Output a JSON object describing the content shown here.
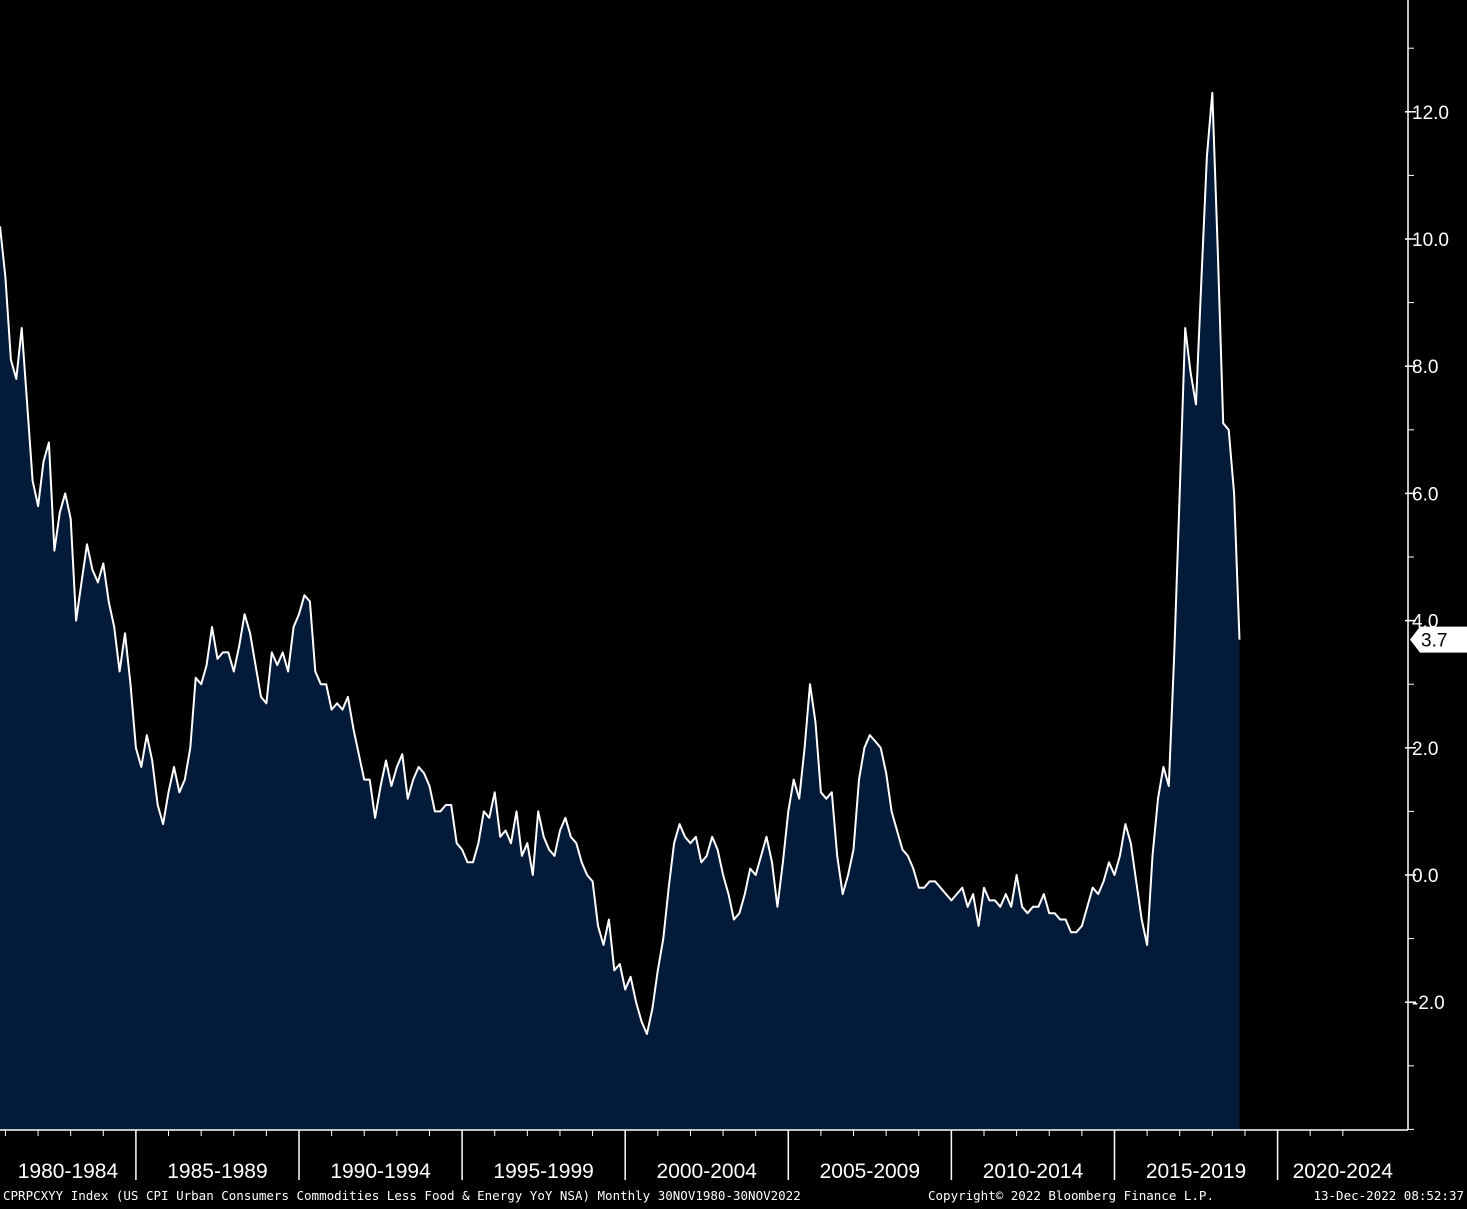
{
  "footer": {
    "left": "CPRPCXYY Index (US CPI Urban Consumers Commodities Less Food & Energy YoY NSA)  Monthly 30NOV1980-30NOV2022",
    "copyright": "Copyright© 2022 Bloomberg Finance L.P.",
    "timestamp": "13-Dec-2022 08:52:37"
  },
  "colors": {
    "background": "#000000",
    "area_fill": "#031a38",
    "line": "#ffffff",
    "axis": "#ffffff"
  },
  "chart_data": {
    "type": "area",
    "title": "",
    "xlabel": "",
    "ylabel": "",
    "x_range": [
      "1980-11",
      "2022-11"
    ],
    "ylim": [
      -4.0,
      14.0
    ],
    "y_ticks": [
      -2.0,
      0.0,
      2.0,
      4.0,
      6.0,
      8.0,
      10.0,
      12.0
    ],
    "y_tick_labels": [
      "-2.0",
      "0.0",
      "2.0",
      "4.0",
      "6.0",
      "8.0",
      "10.0",
      "12.0"
    ],
    "x_tick_labels": [
      "1980-1984",
      "1985-1989",
      "1990-1994",
      "1995-1999",
      "2000-2004",
      "2005-2009",
      "2010-2014",
      "2015-2019",
      "2020-2024"
    ],
    "last_value_label": "3.7",
    "grid": false,
    "series": [
      {
        "values": [
          [
            "1980-11",
            10.2
          ],
          [
            "1981-01",
            9.4
          ],
          [
            "1981-03",
            8.1
          ],
          [
            "1981-05",
            7.8
          ],
          [
            "1981-07",
            8.6
          ],
          [
            "1981-09",
            7.4
          ],
          [
            "1981-11",
            6.2
          ],
          [
            "1982-01",
            5.8
          ],
          [
            "1982-03",
            6.5
          ],
          [
            "1982-05",
            6.8
          ],
          [
            "1982-07",
            5.1
          ],
          [
            "1982-09",
            5.7
          ],
          [
            "1982-11",
            6.0
          ],
          [
            "1983-01",
            5.6
          ],
          [
            "1983-03",
            4.0
          ],
          [
            "1983-05",
            4.6
          ],
          [
            "1983-07",
            5.2
          ],
          [
            "1983-09",
            4.8
          ],
          [
            "1983-11",
            4.6
          ],
          [
            "1984-01",
            4.9
          ],
          [
            "1984-03",
            4.3
          ],
          [
            "1984-05",
            3.9
          ],
          [
            "1984-07",
            3.2
          ],
          [
            "1984-09",
            3.8
          ],
          [
            "1984-11",
            3.0
          ],
          [
            "1985-01",
            2.0
          ],
          [
            "1985-03",
            1.7
          ],
          [
            "1985-05",
            2.2
          ],
          [
            "1985-07",
            1.8
          ],
          [
            "1985-09",
            1.1
          ],
          [
            "1985-11",
            0.8
          ],
          [
            "1986-01",
            1.3
          ],
          [
            "1986-03",
            1.7
          ],
          [
            "1986-05",
            1.3
          ],
          [
            "1986-07",
            1.5
          ],
          [
            "1986-09",
            2.0
          ],
          [
            "1986-11",
            3.1
          ],
          [
            "1987-01",
            3.0
          ],
          [
            "1987-03",
            3.3
          ],
          [
            "1987-05",
            3.9
          ],
          [
            "1987-07",
            3.4
          ],
          [
            "1987-09",
            3.5
          ],
          [
            "1987-11",
            3.5
          ],
          [
            "1988-01",
            3.2
          ],
          [
            "1988-03",
            3.6
          ],
          [
            "1988-05",
            4.1
          ],
          [
            "1988-07",
            3.8
          ],
          [
            "1988-09",
            3.3
          ],
          [
            "1988-11",
            2.8
          ],
          [
            "1989-01",
            2.7
          ],
          [
            "1989-03",
            3.5
          ],
          [
            "1989-05",
            3.3
          ],
          [
            "1989-07",
            3.5
          ],
          [
            "1989-09",
            3.2
          ],
          [
            "1989-11",
            3.9
          ],
          [
            "1990-01",
            4.1
          ],
          [
            "1990-03",
            4.4
          ],
          [
            "1990-05",
            4.3
          ],
          [
            "1990-07",
            3.2
          ],
          [
            "1990-09",
            3.0
          ],
          [
            "1990-11",
            3.0
          ],
          [
            "1991-01",
            2.6
          ],
          [
            "1991-03",
            2.7
          ],
          [
            "1991-05",
            2.6
          ],
          [
            "1991-07",
            2.8
          ],
          [
            "1991-09",
            2.3
          ],
          [
            "1991-11",
            1.9
          ],
          [
            "1992-01",
            1.5
          ],
          [
            "1992-03",
            1.5
          ],
          [
            "1992-05",
            0.9
          ],
          [
            "1992-07",
            1.4
          ],
          [
            "1992-09",
            1.8
          ],
          [
            "1992-11",
            1.4
          ],
          [
            "1993-01",
            1.7
          ],
          [
            "1993-03",
            1.9
          ],
          [
            "1993-05",
            1.2
          ],
          [
            "1993-07",
            1.5
          ],
          [
            "1993-09",
            1.7
          ],
          [
            "1993-11",
            1.6
          ],
          [
            "1994-01",
            1.4
          ],
          [
            "1994-03",
            1.0
          ],
          [
            "1994-05",
            1.0
          ],
          [
            "1994-07",
            1.1
          ],
          [
            "1994-09",
            1.1
          ],
          [
            "1994-11",
            0.5
          ],
          [
            "1995-01",
            0.4
          ],
          [
            "1995-03",
            0.2
          ],
          [
            "1995-05",
            0.2
          ],
          [
            "1995-07",
            0.5
          ],
          [
            "1995-09",
            1.0
          ],
          [
            "1995-11",
            0.9
          ],
          [
            "1996-01",
            1.3
          ],
          [
            "1996-03",
            0.6
          ],
          [
            "1996-05",
            0.7
          ],
          [
            "1996-07",
            0.5
          ],
          [
            "1996-09",
            1.0
          ],
          [
            "1996-11",
            0.3
          ],
          [
            "1997-01",
            0.5
          ],
          [
            "1997-03",
            0.0
          ],
          [
            "1997-05",
            1.0
          ],
          [
            "1997-07",
            0.6
          ],
          [
            "1997-09",
            0.4
          ],
          [
            "1997-11",
            0.3
          ],
          [
            "1998-01",
            0.7
          ],
          [
            "1998-03",
            0.9
          ],
          [
            "1998-05",
            0.6
          ],
          [
            "1998-07",
            0.5
          ],
          [
            "1998-09",
            0.2
          ],
          [
            "1998-11",
            0.0
          ],
          [
            "1999-01",
            -0.1
          ],
          [
            "1999-03",
            -0.8
          ],
          [
            "1999-05",
            -1.1
          ],
          [
            "1999-07",
            -0.7
          ],
          [
            "1999-09",
            -1.5
          ],
          [
            "1999-11",
            -1.4
          ],
          [
            "2000-01",
            -1.8
          ],
          [
            "2000-03",
            -1.6
          ],
          [
            "2000-05",
            -2.0
          ],
          [
            "2000-07",
            -2.3
          ],
          [
            "2000-09",
            -2.5
          ],
          [
            "2000-11",
            -2.1
          ],
          [
            "2001-01",
            -1.5
          ],
          [
            "2001-03",
            -1.0
          ],
          [
            "2001-05",
            -0.2
          ],
          [
            "2001-07",
            0.5
          ],
          [
            "2001-09",
            0.8
          ],
          [
            "2001-11",
            0.6
          ],
          [
            "2002-01",
            0.5
          ],
          [
            "2002-03",
            0.6
          ],
          [
            "2002-05",
            0.2
          ],
          [
            "2002-07",
            0.3
          ],
          [
            "2002-09",
            0.6
          ],
          [
            "2002-11",
            0.4
          ],
          [
            "2003-01",
            0.0
          ],
          [
            "2003-03",
            -0.3
          ],
          [
            "2003-05",
            -0.7
          ],
          [
            "2003-07",
            -0.6
          ],
          [
            "2003-09",
            -0.3
          ],
          [
            "2003-11",
            0.1
          ],
          [
            "2004-01",
            0.0
          ],
          [
            "2004-03",
            0.3
          ],
          [
            "2004-05",
            0.6
          ],
          [
            "2004-07",
            0.2
          ],
          [
            "2004-09",
            -0.5
          ],
          [
            "2004-11",
            0.2
          ],
          [
            "2005-01",
            1.0
          ],
          [
            "2005-03",
            1.5
          ],
          [
            "2005-05",
            1.2
          ],
          [
            "2005-07",
            2.0
          ],
          [
            "2005-09",
            3.0
          ],
          [
            "2005-11",
            2.4
          ],
          [
            "2006-01",
            1.3
          ],
          [
            "2006-03",
            1.2
          ],
          [
            "2006-05",
            1.3
          ],
          [
            "2006-07",
            0.3
          ],
          [
            "2006-09",
            -0.3
          ],
          [
            "2006-11",
            0.0
          ],
          [
            "2007-01",
            0.4
          ],
          [
            "2007-03",
            1.5
          ],
          [
            "2007-05",
            2.0
          ],
          [
            "2007-07",
            2.2
          ],
          [
            "2007-09",
            2.1
          ],
          [
            "2007-11",
            2.0
          ],
          [
            "2008-01",
            1.6
          ],
          [
            "2008-03",
            1.0
          ],
          [
            "2008-05",
            0.7
          ],
          [
            "2008-07",
            0.4
          ],
          [
            "2008-09",
            0.3
          ],
          [
            "2008-11",
            0.1
          ],
          [
            "2009-01",
            -0.2
          ],
          [
            "2009-03",
            -0.2
          ],
          [
            "2009-05",
            -0.1
          ],
          [
            "2009-07",
            -0.1
          ],
          [
            "2009-09",
            -0.2
          ],
          [
            "2009-11",
            -0.3
          ],
          [
            "2010-01",
            -0.4
          ],
          [
            "2010-03",
            -0.3
          ],
          [
            "2010-05",
            -0.2
          ],
          [
            "2010-07",
            -0.5
          ],
          [
            "2010-09",
            -0.3
          ],
          [
            "2010-11",
            -0.8
          ],
          [
            "2011-01",
            -0.2
          ],
          [
            "2011-03",
            -0.4
          ],
          [
            "2011-05",
            -0.4
          ],
          [
            "2011-07",
            -0.5
          ],
          [
            "2011-09",
            -0.3
          ],
          [
            "2011-11",
            -0.5
          ],
          [
            "2012-01",
            0.0
          ],
          [
            "2012-03",
            -0.5
          ],
          [
            "2012-05",
            -0.6
          ],
          [
            "2012-07",
            -0.5
          ],
          [
            "2012-09",
            -0.5
          ],
          [
            "2012-11",
            -0.3
          ],
          [
            "2013-01",
            -0.6
          ],
          [
            "2013-03",
            -0.6
          ],
          [
            "2013-05",
            -0.7
          ],
          [
            "2013-07",
            -0.7
          ],
          [
            "2013-09",
            -0.9
          ],
          [
            "2013-11",
            -0.9
          ],
          [
            "2014-01",
            -0.8
          ],
          [
            "2014-03",
            -0.5
          ],
          [
            "2014-05",
            -0.2
          ],
          [
            "2014-07",
            -0.3
          ],
          [
            "2014-09",
            -0.1
          ],
          [
            "2014-11",
            0.2
          ],
          [
            "2015-01",
            0.0
          ],
          [
            "2015-03",
            0.3
          ],
          [
            "2015-05",
            0.8
          ],
          [
            "2015-07",
            0.5
          ],
          [
            "2015-09",
            -0.1
          ],
          [
            "2015-11",
            -0.7
          ],
          [
            "2016-01",
            -1.1
          ],
          [
            "2016-03",
            0.3
          ],
          [
            "2016-05",
            1.2
          ],
          [
            "2016-07",
            1.7
          ],
          [
            "2016-09",
            1.4
          ],
          [
            "2016-11",
            3.5
          ],
          [
            "2017-01",
            6.0
          ],
          [
            "2017-03",
            8.6
          ],
          [
            "2017-05",
            7.9
          ],
          [
            "2017-07",
            7.4
          ],
          [
            "2017-09",
            9.4
          ],
          [
            "2017-11",
            11.3
          ],
          [
            "2018-01",
            12.3
          ],
          [
            "2018-03",
            9.8
          ],
          [
            "2018-05",
            7.1
          ],
          [
            "2018-07",
            7.0
          ],
          [
            "2018-09",
            6.0
          ],
          [
            "2018-11",
            3.7
          ]
        ]
      }
    ]
  }
}
